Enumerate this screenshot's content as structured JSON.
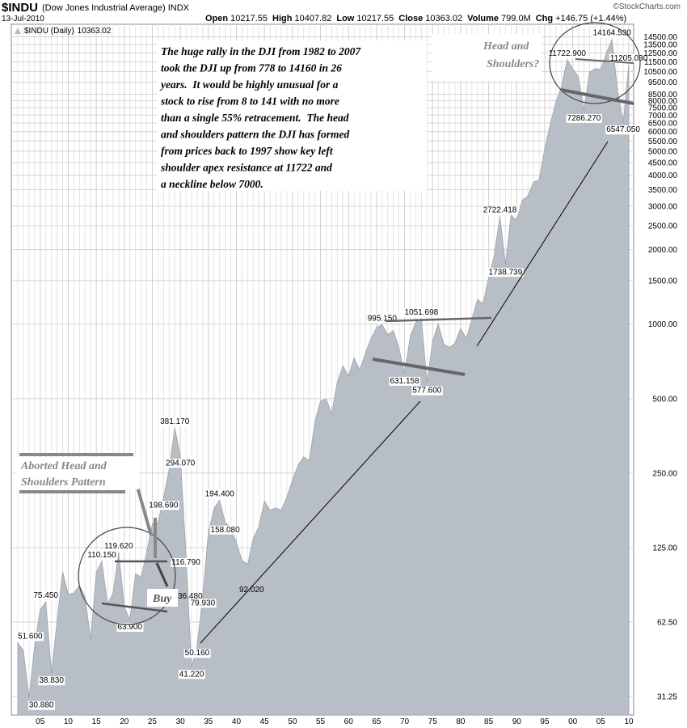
{
  "header": {
    "symbol": "$INDU",
    "name": "(Dow Jones Industrial Average) INDX",
    "date": "13-Jul-2010",
    "source": "©StockCharts.com",
    "stats": [
      {
        "label": "Open",
        "value": 10217.55
      },
      {
        "label": "High",
        "value": 10407.82
      },
      {
        "label": "Low",
        "value": 10217.55
      },
      {
        "label": "Close",
        "value": 10363.02
      },
      {
        "label": "Volume",
        "value": "799.0M"
      },
      {
        "label": "Chg",
        "value": "+146.75 (+1.44%)"
      }
    ]
  },
  "chart_data": {
    "type": "area",
    "log_scale": true,
    "grid": true,
    "legend_value": 10363.02,
    "categories": [
      null,
      null,
      null,
      null,
      "05",
      null,
      null,
      null,
      null,
      "10",
      null,
      null,
      null,
      null,
      "15",
      null,
      null,
      null,
      null,
      "20",
      null,
      null,
      null,
      null,
      "25",
      null,
      null,
      null,
      null,
      "30",
      null,
      null,
      null,
      null,
      "35",
      null,
      null,
      null,
      null,
      "40",
      null,
      null,
      null,
      null,
      "45",
      null,
      null,
      null,
      null,
      "50",
      null,
      null,
      null,
      null,
      "55",
      null,
      null,
      null,
      null,
      "60",
      null,
      null,
      null,
      null,
      "65",
      null,
      null,
      null,
      null,
      "70",
      null,
      null,
      null,
      null,
      "75",
      null,
      null,
      null,
      null,
      "80",
      null,
      null,
      null,
      null,
      "85",
      null,
      null,
      null,
      null,
      "90",
      null,
      null,
      null,
      null,
      "95",
      null,
      null,
      null,
      null,
      "00",
      null,
      null,
      null,
      null,
      "05",
      null,
      null,
      null,
      null,
      "10"
    ],
    "series": [
      {
        "name": "$INDU (Daily)",
        "color": "#b8bec6",
        "values": [
          51.6,
          48,
          30.88,
          50,
          70,
          75.45,
          38.83,
          63,
          100,
          81,
          82,
          88,
          79,
          53,
          99,
          110.15,
          74,
          82,
          119.62,
          72,
          63.9,
          98,
          95,
          120,
          156,
          157,
          198.69,
          260,
          381.17,
          294.07,
          116.79,
          41.22,
          50.16,
          79.93,
          144,
          180,
          194.4,
          158.08,
          150,
          131,
          111,
          107,
          136,
          152,
          193,
          177,
          181,
          177,
          200,
          235,
          269,
          291,
          280,
          404,
          488,
          499,
          435,
          583,
          679,
          615,
          731,
          652,
          762,
          874,
          969,
          995.15,
          905,
          943,
          800,
          631.158,
          890,
          1020,
          1051.698,
          577.6,
          852,
          1004,
          831,
          805,
          838,
          963,
          875,
          1046,
          1258,
          1211,
          1546,
          1895,
          2722.418,
          1738.739,
          2753,
          2633,
          3168,
          3301,
          3754,
          3834,
          5117,
          6448,
          7908,
          9181,
          11722.9,
          10787,
          10021,
          7286.27,
          10453,
          10783,
          10717,
          12463,
          14164.53,
          8776,
          6547.05,
          11205.03
        ],
        "value_labels": [
          "51.600",
          null,
          "30.880",
          null,
          null,
          "75.450",
          "38.830",
          null,
          null,
          null,
          null,
          null,
          null,
          null,
          null,
          "110.150",
          null,
          null,
          "119.620",
          null,
          "63.900",
          null,
          null,
          null,
          null,
          null,
          "198.690",
          null,
          "381.170",
          "294.070",
          "116.790",
          "41.220",
          "50.160",
          "79.930",
          null,
          null,
          "194.400",
          "158.080",
          null,
          null,
          null,
          null,
          null,
          null,
          null,
          null,
          null,
          null,
          null,
          null,
          null,
          null,
          null,
          null,
          null,
          null,
          null,
          null,
          null,
          null,
          null,
          null,
          null,
          null,
          null,
          "995.150",
          null,
          null,
          null,
          "631.158",
          null,
          null,
          "1051.698",
          "577.600",
          null,
          null,
          null,
          null,
          null,
          null,
          null,
          null,
          null,
          null,
          null,
          null,
          "2722.418",
          "1738.739",
          null,
          null,
          null,
          null,
          null,
          null,
          null,
          null,
          null,
          null,
          "11722.900",
          null,
          null,
          "7286.270",
          null,
          null,
          null,
          null,
          "14164.530",
          null,
          "6547.050",
          "11205.030"
        ]
      }
    ],
    "ylim": [
      26.3,
      16300
    ],
    "yticks": [
      {
        "value": 31.25,
        "label": "31.25"
      },
      {
        "value": 62.5,
        "label": "62.50"
      },
      {
        "value": 125,
        "label": "125.00"
      },
      {
        "value": 250,
        "label": "250.00"
      },
      {
        "value": 500,
        "label": "500.00"
      },
      {
        "value": 1000,
        "label": "1000.00"
      },
      {
        "value": 1500,
        "label": "1500.00"
      },
      {
        "value": 2000,
        "label": "2000.00"
      },
      {
        "value": 2500,
        "label": "2500.00"
      },
      {
        "value": 3000,
        "label": "3000.00"
      },
      {
        "value": 3500,
        "label": "3500.00"
      },
      {
        "value": 4000,
        "label": "4000.00"
      },
      {
        "value": 4500,
        "label": "4500.00"
      },
      {
        "value": 5000,
        "label": "5000.00"
      },
      {
        "value": 5500,
        "label": "5500.00"
      },
      {
        "value": 6000,
        "label": "6000.00"
      },
      {
        "value": 6500,
        "label": "6500.00"
      },
      {
        "value": 7000,
        "label": "7000.00"
      },
      {
        "value": 7500,
        "label": "7500.00"
      },
      {
        "value": 8000,
        "label": "8000.00"
      },
      {
        "value": 8500,
        "label": "8500.00"
      },
      {
        "value": 9500,
        "label": "9500.00"
      },
      {
        "value": 10500,
        "label": "10500.00"
      },
      {
        "value": 11500,
        "label": "11500.00"
      },
      {
        "value": 12500,
        "label": "12500.00"
      },
      {
        "value": 13500,
        "label": "13500.00"
      },
      {
        "value": 14500,
        "label": "14500.00"
      }
    ],
    "annotations": [
      "36.480",
      "92.020"
    ],
    "commentary": [
      "The huge rally in the DJI from 1982 to 2007",
      "took the DJI up from 778 to 14160 in 26",
      "years.  It would be highly unusual for a",
      "stock to rise from 8 to 141 with no more",
      "than a single 55% retracement.  The head",
      "and shoulders pattern the DJI has formed",
      "from prices back to 1997 show key left",
      "shoulder apex resistance at 11722 and",
      "a neckline below 7000."
    ],
    "head_shoulders_note": [
      "Head and",
      "Shoulders?"
    ],
    "aborted_note": [
      "Aborted Head and",
      "Shoulders Pattern"
    ],
    "buy_note": "Buy"
  }
}
